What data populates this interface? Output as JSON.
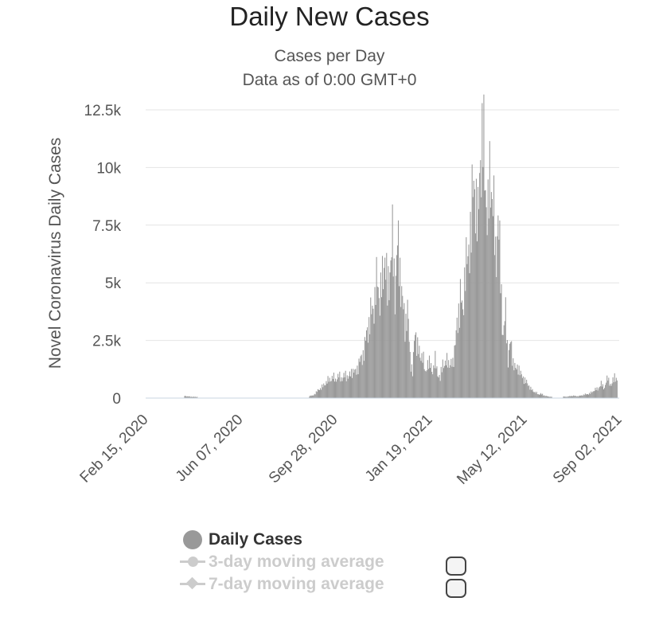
{
  "chart_data": {
    "type": "bar",
    "title": "Daily New Cases",
    "subtitle": [
      "Cases per Day",
      "Data as of 0:00 GMT+0"
    ],
    "xlabel": "",
    "ylabel": "Novel Coronavirus Daily Cases",
    "ylim": [
      0,
      12500
    ],
    "yticks": [
      {
        "value": 0,
        "label": "0"
      },
      {
        "value": 2500,
        "label": "2.5k"
      },
      {
        "value": 5000,
        "label": "5k"
      },
      {
        "value": 7500,
        "label": "7.5k"
      },
      {
        "value": 10000,
        "label": "10k"
      },
      {
        "value": 12500,
        "label": "12.5k"
      }
    ],
    "xticks": [
      "Feb 15, 2020",
      "Jun 07, 2020",
      "Sep 28, 2020",
      "Jan 19, 2021",
      "May 12, 2021",
      "Sep 02, 2021"
    ],
    "x_start": "2020-02-15",
    "x_end": "2021-09-02",
    "grid": true,
    "legend_position": "bottom",
    "color": "#999999",
    "series": [
      {
        "name": "Daily Cases",
        "points": [
          [
            "2020-04-01",
            100
          ],
          [
            "2020-04-03",
            80
          ],
          [
            "2020-04-08",
            60
          ],
          [
            "2020-04-12",
            50
          ],
          [
            "2020-09-01",
            100
          ],
          [
            "2020-09-05",
            250
          ],
          [
            "2020-09-09",
            400
          ],
          [
            "2020-09-13",
            500
          ],
          [
            "2020-09-17",
            700
          ],
          [
            "2020-09-21",
            800
          ],
          [
            "2020-09-25",
            900
          ],
          [
            "2020-09-28",
            800
          ],
          [
            "2020-10-02",
            950
          ],
          [
            "2020-10-06",
            850
          ],
          [
            "2020-10-10",
            1000
          ],
          [
            "2020-10-14",
            900
          ],
          [
            "2020-10-18",
            1200
          ],
          [
            "2020-10-22",
            1100
          ],
          [
            "2020-10-26",
            1500
          ],
          [
            "2020-10-30",
            1800
          ],
          [
            "2020-11-02",
            2200
          ],
          [
            "2020-11-05",
            3000
          ],
          [
            "2020-11-08",
            3300
          ],
          [
            "2020-11-11",
            3900
          ],
          [
            "2020-11-14",
            4200
          ],
          [
            "2020-11-17",
            5200
          ],
          [
            "2020-11-20",
            4300
          ],
          [
            "2020-11-23",
            5000
          ],
          [
            "2020-11-26",
            6400
          ],
          [
            "2020-11-29",
            4400
          ],
          [
            "2020-12-02",
            5700
          ],
          [
            "2020-12-05",
            6700
          ],
          [
            "2020-12-08",
            4700
          ],
          [
            "2020-12-11",
            6600
          ],
          [
            "2020-12-14",
            5600
          ],
          [
            "2020-12-17",
            4100
          ],
          [
            "2020-12-20",
            3200
          ],
          [
            "2020-12-23",
            3800
          ],
          [
            "2020-12-26",
            1800
          ],
          [
            "2020-12-29",
            1100
          ],
          [
            "2021-01-01",
            2900
          ],
          [
            "2021-01-04",
            2300
          ],
          [
            "2021-01-07",
            1700
          ],
          [
            "2021-01-10",
            2000
          ],
          [
            "2021-01-13",
            1000
          ],
          [
            "2021-01-16",
            1600
          ],
          [
            "2021-01-19",
            1400
          ],
          [
            "2021-01-22",
            1200
          ],
          [
            "2021-01-25",
            1600
          ],
          [
            "2021-01-28",
            1100
          ],
          [
            "2021-01-31",
            800
          ],
          [
            "2021-02-03",
            1600
          ],
          [
            "2021-02-06",
            1400
          ],
          [
            "2021-02-09",
            1700
          ],
          [
            "2021-02-12",
            1400
          ],
          [
            "2021-02-15",
            1500
          ],
          [
            "2021-02-18",
            2500
          ],
          [
            "2021-02-21",
            3200
          ],
          [
            "2021-02-24",
            4700
          ],
          [
            "2021-02-27",
            3400
          ],
          [
            "2021-03-02",
            6200
          ],
          [
            "2021-03-05",
            5600
          ],
          [
            "2021-03-08",
            7500
          ],
          [
            "2021-03-11",
            8700
          ],
          [
            "2021-03-14",
            9200
          ],
          [
            "2021-03-17",
            7300
          ],
          [
            "2021-03-20",
            10800
          ],
          [
            "2021-03-23",
            11100
          ],
          [
            "2021-03-26",
            9300
          ],
          [
            "2021-03-29",
            7800
          ],
          [
            "2021-04-01",
            9800
          ],
          [
            "2021-04-04",
            8600
          ],
          [
            "2021-04-07",
            6000
          ],
          [
            "2021-04-10",
            7900
          ],
          [
            "2021-04-13",
            5300
          ],
          [
            "2021-04-16",
            2700
          ],
          [
            "2021-04-19",
            3600
          ],
          [
            "2021-04-22",
            1700
          ],
          [
            "2021-04-25",
            2400
          ],
          [
            "2021-04-28",
            1600
          ],
          [
            "2021-05-01",
            1200
          ],
          [
            "2021-05-04",
            1400
          ],
          [
            "2021-05-07",
            1000
          ],
          [
            "2021-05-10",
            900
          ],
          [
            "2021-05-13",
            700
          ],
          [
            "2021-05-16",
            600
          ],
          [
            "2021-05-19",
            400
          ],
          [
            "2021-05-22",
            300
          ],
          [
            "2021-05-25",
            250
          ],
          [
            "2021-05-28",
            150
          ],
          [
            "2021-05-31",
            200
          ],
          [
            "2021-06-03",
            120
          ],
          [
            "2021-06-06",
            100
          ],
          [
            "2021-06-09",
            60
          ],
          [
            "2021-07-01",
            60
          ],
          [
            "2021-07-08",
            100
          ],
          [
            "2021-07-15",
            80
          ],
          [
            "2021-07-22",
            150
          ],
          [
            "2021-07-29",
            200
          ],
          [
            "2021-08-03",
            350
          ],
          [
            "2021-08-07",
            400
          ],
          [
            "2021-08-11",
            600
          ],
          [
            "2021-08-15",
            450
          ],
          [
            "2021-08-19",
            900
          ],
          [
            "2021-08-23",
            500
          ],
          [
            "2021-08-27",
            1000
          ],
          [
            "2021-08-30",
            700
          ]
        ]
      },
      {
        "name": "3-day moving average",
        "visible": false
      },
      {
        "name": "7-day moving average",
        "visible": false
      }
    ]
  }
}
